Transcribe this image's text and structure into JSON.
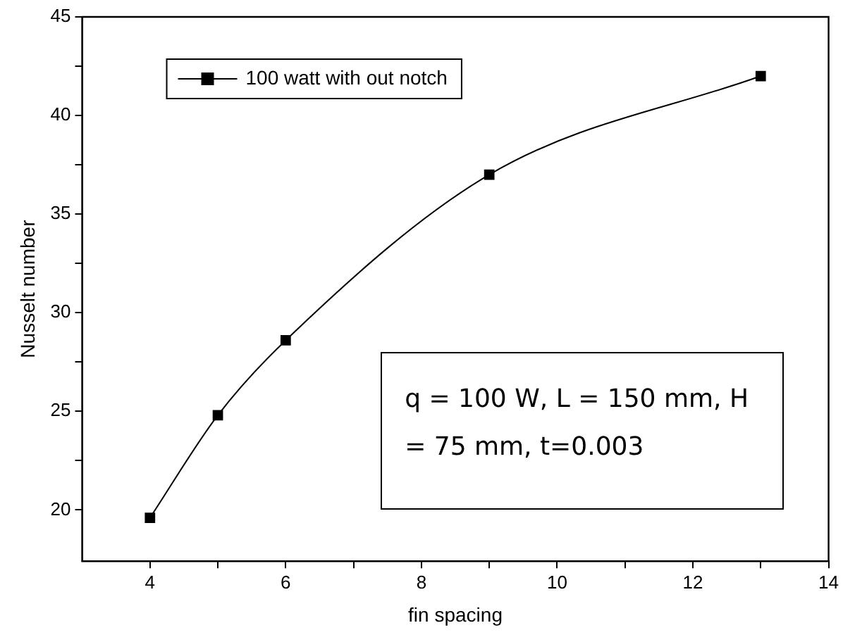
{
  "chart_data": {
    "type": "line",
    "xlabel": "fin spacing",
    "ylabel": "Nusselt number",
    "x": [
      4,
      5,
      6,
      9,
      13
    ],
    "series": [
      {
        "name": "100 watt with out notch",
        "color": "#000000",
        "values": [
          19.6,
          24.8,
          28.6,
          37,
          42
        ]
      }
    ],
    "xlim": [
      3,
      14
    ],
    "ylim": [
      17.4,
      45
    ],
    "xticks": [
      4,
      {
        "value": 5,
        "label": null
      },
      6,
      {
        "value": 7,
        "label": null
      },
      8,
      {
        "value": 9,
        "label": null
      },
      10,
      {
        "value": 11,
        "label": null
      },
      12,
      {
        "value": 13,
        "label": null
      },
      14
    ],
    "yticks": [
      20,
      {
        "value": 22.5,
        "label": null
      },
      25,
      {
        "value": 27.5,
        "label": null
      },
      30,
      {
        "value": 32.5,
        "label": null
      },
      35,
      {
        "value": 37.5,
        "label": null
      },
      40,
      {
        "value": 42.5,
        "label": null
      },
      45
    ],
    "annotations": [
      "q = 100 W, L = 150 mm, H = 75 mm, t=0.003"
    ],
    "grid": false,
    "legend": "top left",
    "marker": "square",
    "line_style": "solid"
  }
}
